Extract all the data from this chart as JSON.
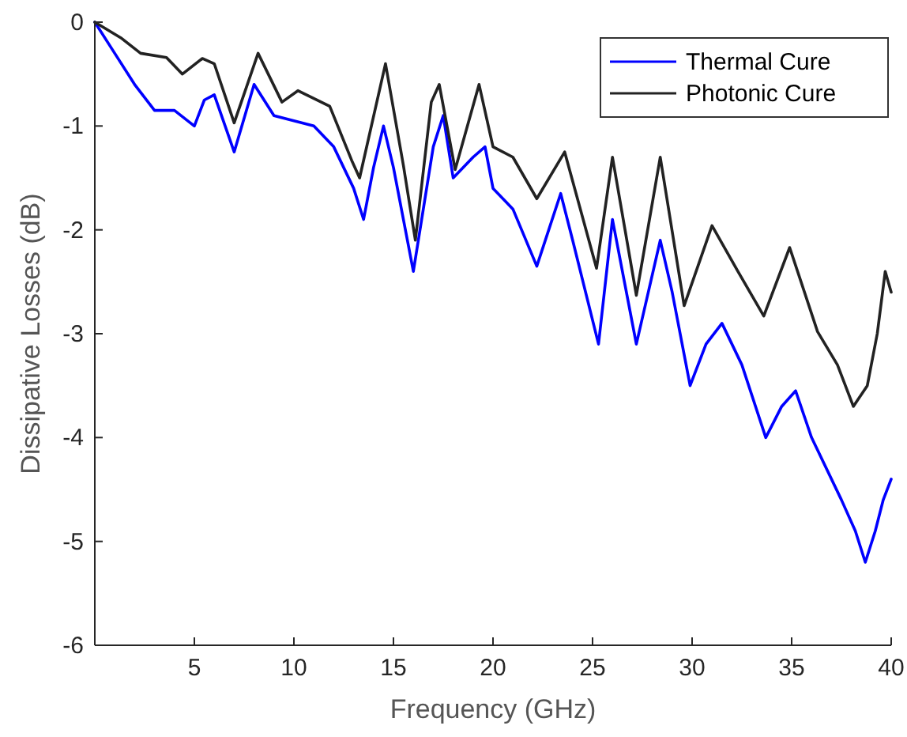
{
  "chart_data": {
    "type": "line",
    "xlabel": "Frequency (GHz)",
    "ylabel": "Dissipative Losses (dB)",
    "xlim": [
      0,
      40
    ],
    "ylim": [
      -6,
      0
    ],
    "xticks": [
      5,
      10,
      15,
      20,
      25,
      30,
      35,
      40
    ],
    "yticks": [
      -6,
      -5,
      -4,
      -3,
      -2,
      -1,
      0
    ],
    "grid": false,
    "legend": "top right",
    "line_style": "solid",
    "marker": "none",
    "series": [
      {
        "name": "Thermal Cure",
        "color": "#0000ff",
        "x": [
          0,
          1,
          2,
          3,
          4,
          5,
          5.5,
          6,
          7,
          8,
          9,
          10,
          11,
          12,
          13,
          13.5,
          14,
          14.5,
          15,
          16,
          16.5,
          17,
          17.5,
          18,
          19,
          19.6,
          20,
          21,
          22.2,
          23.4,
          24,
          25.3,
          26,
          26.6,
          27.2,
          28.4,
          29,
          29.9,
          30.7,
          31.5,
          32.5,
          33.7,
          34.5,
          35.2,
          36,
          37.5,
          38.2,
          38.7,
          39.2,
          39.6,
          40
        ],
        "values": [
          0,
          -0.3,
          -0.6,
          -0.85,
          -0.85,
          -1.0,
          -0.75,
          -0.7,
          -1.25,
          -0.6,
          -0.9,
          -0.95,
          -1.0,
          -1.2,
          -1.6,
          -1.9,
          -1.4,
          -1.0,
          -1.4,
          -2.4,
          -1.8,
          -1.2,
          -0.9,
          -1.5,
          -1.3,
          -1.2,
          -1.6,
          -1.8,
          -2.35,
          -1.65,
          -2.1,
          -3.1,
          -1.9,
          -2.5,
          -3.1,
          -2.1,
          -2.6,
          -3.5,
          -3.1,
          -2.9,
          -3.3,
          -4.0,
          -3.7,
          -3.55,
          -4.0,
          -4.6,
          -4.9,
          -5.2,
          -4.9,
          -4.6,
          -4.4
        ]
      },
      {
        "name": "Photonic Cure",
        "color": "#222222",
        "x": [
          0,
          1.3,
          2.3,
          3.6,
          4.4,
          5.4,
          6,
          7,
          8.2,
          9.4,
          10.2,
          11.8,
          12.9,
          13.3,
          14.6,
          15.5,
          16.1,
          16.9,
          17.3,
          18.1,
          19.3,
          20,
          21,
          22.2,
          23.6,
          25.2,
          26,
          27.2,
          28.4,
          29.6,
          31,
          32.3,
          33.6,
          34.9,
          36.3,
          37.3,
          38.1,
          38.8,
          39.3,
          39.7,
          40
        ],
        "values": [
          0,
          -0.15,
          -0.3,
          -0.34,
          -0.5,
          -0.35,
          -0.4,
          -0.97,
          -0.3,
          -0.77,
          -0.66,
          -0.81,
          -1.33,
          -1.5,
          -0.4,
          -1.38,
          -2.1,
          -0.77,
          -0.6,
          -1.42,
          -0.6,
          -1.2,
          -1.3,
          -1.7,
          -1.25,
          -2.37,
          -1.3,
          -2.63,
          -1.3,
          -2.73,
          -1.96,
          -2.4,
          -2.83,
          -2.17,
          -2.98,
          -3.3,
          -3.7,
          -3.5,
          -3.0,
          -2.4,
          -2.6
        ]
      }
    ]
  }
}
